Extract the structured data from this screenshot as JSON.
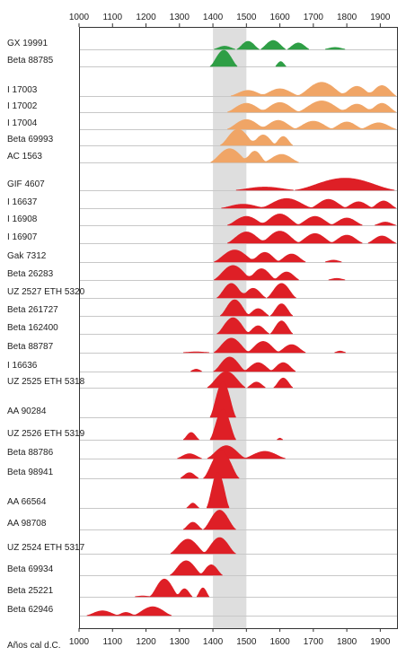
{
  "chart_data": {
    "type": "area",
    "subtype": "radiocarbon calibrated date probability distributions",
    "xlabel": "Años cal d.C.",
    "xlim": [
      1000,
      1950
    ],
    "xticks": [
      1000,
      1100,
      1200,
      1300,
      1400,
      1500,
      1600,
      1700,
      1800,
      1900
    ],
    "highlight_band": [
      1400,
      1500
    ],
    "grid": "horizontal row baselines",
    "colors": {
      "green": "#2e9e45",
      "orange": "#f0a566",
      "red": "#de1f26",
      "band": "#dedede"
    },
    "series": [
      {
        "name": "GX 19991",
        "color": "green",
        "peaks": [
          [
            1400,
            1470,
            0.2
          ],
          [
            1470,
            1540,
            0.5
          ],
          [
            1540,
            1620,
            0.55
          ],
          [
            1620,
            1690,
            0.4
          ],
          [
            1730,
            1800,
            0.12
          ]
        ]
      },
      {
        "name": "Beta 88785",
        "color": "green",
        "peaks": [
          [
            1390,
            1475,
            1.0
          ],
          [
            1585,
            1620,
            0.3
          ]
        ]
      },
      {
        "name": "I 17003",
        "color": "orange",
        "peaks": [
          [
            1450,
            1560,
            0.35
          ],
          [
            1540,
            1660,
            0.45
          ],
          [
            1650,
            1800,
            0.85
          ],
          [
            1780,
            1880,
            0.6
          ],
          [
            1860,
            1950,
            0.65
          ]
        ]
      },
      {
        "name": "I 17002",
        "color": "orange",
        "peaks": [
          [
            1440,
            1560,
            0.55
          ],
          [
            1540,
            1660,
            0.6
          ],
          [
            1650,
            1800,
            0.7
          ],
          [
            1780,
            1880,
            0.5
          ],
          [
            1860,
            1950,
            0.55
          ]
        ]
      },
      {
        "name": "I 17004",
        "color": "orange",
        "peaks": [
          [
            1440,
            1560,
            0.6
          ],
          [
            1540,
            1650,
            0.55
          ],
          [
            1640,
            1760,
            0.5
          ],
          [
            1750,
            1850,
            0.45
          ],
          [
            1840,
            1950,
            0.4
          ]
        ]
      },
      {
        "name": "Beta 69993",
        "color": "orange",
        "peaks": [
          [
            1420,
            1530,
            1.0
          ],
          [
            1510,
            1590,
            0.65
          ],
          [
            1580,
            1640,
            0.55
          ]
        ]
      },
      {
        "name": "AC 1563",
        "color": "orange",
        "peaks": [
          [
            1390,
            1510,
            0.85
          ],
          [
            1490,
            1560,
            0.7
          ],
          [
            1550,
            1660,
            0.5
          ]
        ]
      },
      {
        "name": "GIF 4607",
        "color": "red",
        "peaks": [
          [
            1460,
            1650,
            0.2
          ],
          [
            1640,
            1950,
            0.75
          ]
        ]
      },
      {
        "name": "I 16637",
        "color": "red",
        "peaks": [
          [
            1420,
            1560,
            0.25
          ],
          [
            1540,
            1700,
            0.6
          ],
          [
            1690,
            1800,
            0.55
          ],
          [
            1790,
            1880,
            0.4
          ],
          [
            1870,
            1950,
            0.45
          ]
        ]
      },
      {
        "name": "I 16908",
        "color": "red",
        "peaks": [
          [
            1440,
            1560,
            0.55
          ],
          [
            1540,
            1660,
            0.7
          ],
          [
            1650,
            1760,
            0.55
          ],
          [
            1750,
            1850,
            0.45
          ],
          [
            1880,
            1950,
            0.2
          ]
        ]
      },
      {
        "name": "I 16907",
        "color": "red",
        "peaks": [
          [
            1440,
            1560,
            0.7
          ],
          [
            1540,
            1660,
            0.75
          ],
          [
            1650,
            1760,
            0.6
          ],
          [
            1750,
            1850,
            0.5
          ],
          [
            1860,
            1950,
            0.45
          ]
        ]
      },
      {
        "name": "Gak 7312",
        "color": "red",
        "peaks": [
          [
            1400,
            1530,
            0.75
          ],
          [
            1510,
            1600,
            0.6
          ],
          [
            1590,
            1680,
            0.5
          ],
          [
            1730,
            1790,
            0.12
          ]
        ]
      },
      {
        "name": "Beta 26283",
        "color": "red",
        "peaks": [
          [
            1400,
            1520,
            0.9
          ],
          [
            1500,
            1590,
            0.7
          ],
          [
            1580,
            1660,
            0.5
          ],
          [
            1740,
            1800,
            0.1
          ]
        ]
      },
      {
        "name": "UZ 2527 ETH 5320",
        "color": "red",
        "peaks": [
          [
            1410,
            1500,
            0.9
          ],
          [
            1480,
            1560,
            0.6
          ],
          [
            1560,
            1650,
            0.9
          ]
        ]
      },
      {
        "name": "Beta 261727",
        "color": "red",
        "peaks": [
          [
            1420,
            1510,
            1.0
          ],
          [
            1500,
            1570,
            0.45
          ],
          [
            1570,
            1640,
            0.75
          ]
        ]
      },
      {
        "name": "Beta 162400",
        "color": "red",
        "peaks": [
          [
            1410,
            1510,
            1.0
          ],
          [
            1500,
            1570,
            0.5
          ],
          [
            1570,
            1640,
            0.8
          ]
        ]
      },
      {
        "name": "Beta 88787",
        "color": "red",
        "peaks": [
          [
            1300,
            1400,
            0.05
          ],
          [
            1400,
            1510,
            0.9
          ],
          [
            1500,
            1600,
            0.7
          ],
          [
            1590,
            1680,
            0.5
          ],
          [
            1760,
            1800,
            0.1
          ]
        ]
      },
      {
        "name": "I 16636",
        "color": "red",
        "peaks": [
          [
            1330,
            1370,
            0.15
          ],
          [
            1400,
            1500,
            0.9
          ],
          [
            1490,
            1580,
            0.55
          ],
          [
            1570,
            1650,
            0.55
          ]
        ]
      },
      {
        "name": "UZ 2525 ETH 5318",
        "color": "red",
        "peaks": [
          [
            1380,
            1500,
            1.0
          ],
          [
            1500,
            1560,
            0.35
          ],
          [
            1580,
            1640,
            0.6
          ]
        ]
      },
      {
        "name": "AA 90284",
        "color": "red",
        "peaks": [
          [
            1390,
            1470,
            2.2
          ]
        ]
      },
      {
        "name": "UZ 2526 ETH 5319",
        "color": "red",
        "peaks": [
          [
            1310,
            1360,
            0.45
          ],
          [
            1390,
            1470,
            1.9
          ],
          [
            1590,
            1610,
            0.1
          ]
        ]
      },
      {
        "name": "Beta 88786",
        "color": "red",
        "peaks": [
          [
            1290,
            1370,
            0.3
          ],
          [
            1380,
            1500,
            0.8
          ],
          [
            1490,
            1620,
            0.45
          ]
        ]
      },
      {
        "name": "Beta 98941",
        "color": "red",
        "peaks": [
          [
            1300,
            1360,
            0.35
          ],
          [
            1370,
            1480,
            1.7
          ]
        ]
      },
      {
        "name": "AA 66564",
        "color": "red",
        "peaks": [
          [
            1320,
            1360,
            0.3
          ],
          [
            1380,
            1450,
            2.2
          ]
        ]
      },
      {
        "name": "AA 98708",
        "color": "red",
        "peaks": [
          [
            1310,
            1370,
            0.45
          ],
          [
            1370,
            1470,
            1.2
          ]
        ]
      },
      {
        "name": "UZ 2524 ETH 5317",
        "color": "red",
        "peaks": [
          [
            1270,
            1380,
            0.9
          ],
          [
            1370,
            1470,
            1.0
          ]
        ]
      },
      {
        "name": "Beta 69934",
        "color": "red",
        "peaks": [
          [
            1270,
            1370,
            0.9
          ],
          [
            1360,
            1430,
            0.65
          ]
        ]
      },
      {
        "name": "Beta 25221",
        "color": "red",
        "peaks": [
          [
            1160,
            1220,
            0.05
          ],
          [
            1210,
            1300,
            1.1
          ],
          [
            1290,
            1340,
            0.5
          ],
          [
            1350,
            1390,
            0.55
          ]
        ]
      },
      {
        "name": "Beta 62946",
        "color": "red",
        "peaks": [
          [
            1020,
            1120,
            0.3
          ],
          [
            1110,
            1170,
            0.2
          ],
          [
            1160,
            1280,
            0.55
          ]
        ]
      }
    ]
  }
}
